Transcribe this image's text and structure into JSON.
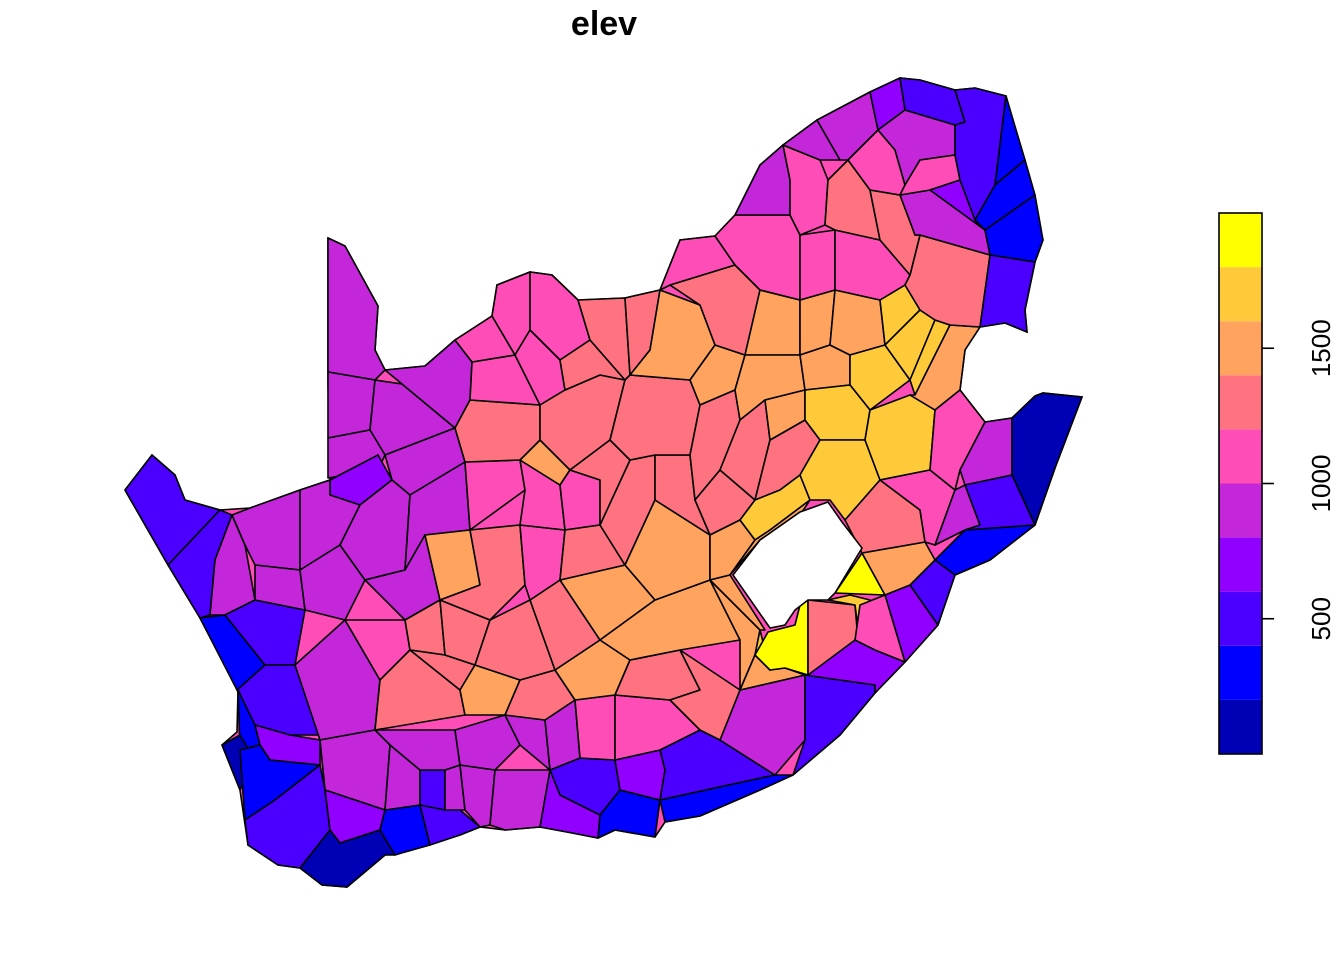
{
  "title": "elev",
  "map": {
    "variable": "elev",
    "regions": "Voronoi cells covering South Africa (Lesotho shown as an unfilled hole)",
    "low_color": "#0000AA",
    "high_color": "#FFFF00"
  },
  "legend": {
    "orientation": "vertical",
    "position": "right",
    "value_range": [
      0,
      2000
    ],
    "bins": [
      {
        "from": 0,
        "to": 200,
        "color": "#0000B4"
      },
      {
        "from": 200,
        "to": 400,
        "color": "#0000FF"
      },
      {
        "from": 400,
        "to": 600,
        "color": "#4B00FF"
      },
      {
        "from": 600,
        "to": 800,
        "color": "#9100FF"
      },
      {
        "from": 800,
        "to": 1000,
        "color": "#C427D9"
      },
      {
        "from": 1000,
        "to": 1200,
        "color": "#FF4DB8"
      },
      {
        "from": 1200,
        "to": 1400,
        "color": "#FF7380"
      },
      {
        "from": 1400,
        "to": 1600,
        "color": "#FFA35E"
      },
      {
        "from": 1600,
        "to": 1800,
        "color": "#FFCA3A"
      },
      {
        "from": 1800,
        "to": 2000,
        "color": "#FFFF00"
      }
    ],
    "ticks": [
      {
        "value": 500,
        "label": "500"
      },
      {
        "value": 1000,
        "label": "1000"
      },
      {
        "value": 1500,
        "label": "1500"
      }
    ]
  }
}
